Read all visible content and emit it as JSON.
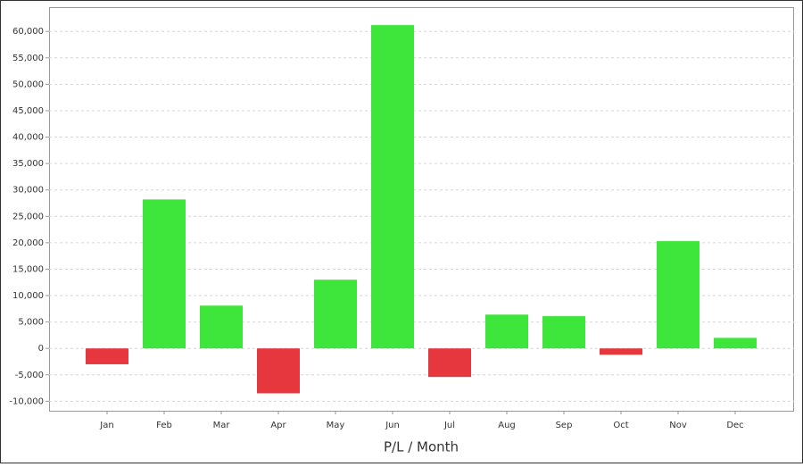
{
  "chart_data": {
    "type": "bar",
    "x_label": "P/L / Month",
    "categories": [
      "Jan",
      "Feb",
      "Mar",
      "Apr",
      "May",
      "Jun",
      "Jul",
      "Aug",
      "Sep",
      "Oct",
      "Nov",
      "Dec"
    ],
    "values": [
      -3000,
      28200,
      8100,
      -8500,
      13000,
      61200,
      -5400,
      6400,
      6100,
      -1200,
      20300,
      2000
    ],
    "positive_color": "#3ee63b",
    "negative_color": "#e5373d",
    "ylim": [
      -11800,
      64600
    ],
    "yticks": [
      {
        "value": -10000,
        "label": "-10,000"
      },
      {
        "value": -5000,
        "label": "-5,000"
      },
      0,
      {
        "value": 5000,
        "label": "5,000"
      },
      {
        "value": 10000,
        "label": "10,000"
      },
      {
        "value": 15000,
        "label": "15,000"
      },
      {
        "value": 20000,
        "label": "20,000"
      },
      {
        "value": 25000,
        "label": "25,000"
      },
      {
        "value": 30000,
        "label": "30,000"
      },
      {
        "value": 35000,
        "label": "35,000"
      },
      {
        "value": 40000,
        "label": "40,000"
      },
      {
        "value": 45000,
        "label": "45,000"
      },
      {
        "value": 50000,
        "label": "50,000"
      },
      {
        "value": 55000,
        "label": "55,000"
      },
      {
        "value": 60000,
        "label": "60,000"
      }
    ],
    "grid": true
  }
}
